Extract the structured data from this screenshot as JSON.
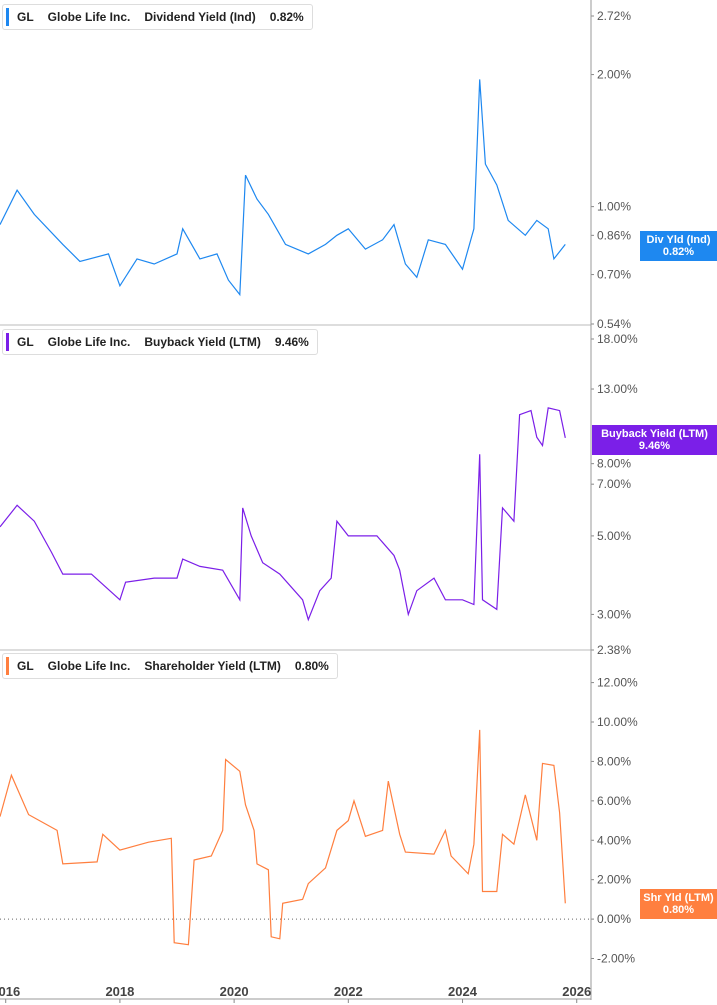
{
  "chart_data": [
    {
      "type": "line",
      "ticker": "GL",
      "company": "Globe Life Inc.",
      "metric": "Dividend Yield (Ind)",
      "value_label": "0.82%",
      "tag_name": "Div Yld (Ind)",
      "color": "#1e88f0",
      "scale": "log",
      "ylim": [
        0.54,
        2.72
      ],
      "yticks": [
        "2.72%",
        "2.00%",
        "1.00%",
        "0.86%",
        "0.70%",
        "0.54%"
      ],
      "x": [
        2015.9,
        2016.2,
        2016.5,
        2017,
        2017.3,
        2017.8,
        2018,
        2018.3,
        2018.6,
        2019,
        2019.1,
        2019.4,
        2019.7,
        2019.9,
        2020.1,
        2020.2,
        2020.4,
        2020.6,
        2020.9,
        2021.3,
        2021.6,
        2021.8,
        2022,
        2022.3,
        2022.6,
        2022.8,
        2023,
        2023.2,
        2023.4,
        2023.7,
        2024,
        2024.2,
        2024.3,
        2024.4,
        2024.6,
        2024.8,
        2025.1,
        2025.3,
        2025.5,
        2025.6,
        2025.8
      ],
      "y": [
        0.91,
        1.09,
        0.96,
        0.82,
        0.75,
        0.78,
        0.66,
        0.76,
        0.74,
        0.78,
        0.89,
        0.76,
        0.78,
        0.68,
        0.63,
        1.18,
        1.04,
        0.96,
        0.82,
        0.78,
        0.82,
        0.86,
        0.89,
        0.8,
        0.84,
        0.91,
        0.74,
        0.69,
        0.84,
        0.82,
        0.72,
        0.89,
        1.95,
        1.25,
        1.12,
        0.93,
        0.86,
        0.93,
        0.89,
        0.76,
        0.82
      ]
    },
    {
      "type": "line",
      "ticker": "GL",
      "company": "Globe Life Inc.",
      "metric": "Buyback Yield (LTM)",
      "value_label": "9.46%",
      "tag_name": "Buyback Yield (LTM)",
      "color": "#7b1fe8",
      "scale": "log",
      "ylim": [
        2.38,
        18
      ],
      "yticks": [
        "18.00%",
        "13.00%",
        "8.00%",
        "7.00%",
        "5.00%",
        "3.00%",
        "2.38%"
      ],
      "x": [
        2015.9,
        2016.2,
        2016.5,
        2016.8,
        2017,
        2017.5,
        2018,
        2018.1,
        2018.6,
        2019,
        2019.1,
        2019.4,
        2019.8,
        2020.1,
        2020.15,
        2020.3,
        2020.5,
        2020.8,
        2021.2,
        2021.3,
        2021.5,
        2021.7,
        2021.8,
        2022,
        2022.3,
        2022.5,
        2022.8,
        2022.9,
        2023.05,
        2023.2,
        2023.5,
        2023.7,
        2024,
        2024.2,
        2024.3,
        2024.35,
        2024.6,
        2024.7,
        2024.9,
        2025,
        2025.2,
        2025.3,
        2025.4,
        2025.5,
        2025.7,
        2025.8
      ],
      "y": [
        5.3,
        6.1,
        5.5,
        4.5,
        3.9,
        3.9,
        3.3,
        3.7,
        3.8,
        3.8,
        4.3,
        4.1,
        4.0,
        3.3,
        6.0,
        5.0,
        4.2,
        3.9,
        3.3,
        2.9,
        3.5,
        3.8,
        5.5,
        5.0,
        5.0,
        5.0,
        4.4,
        4.0,
        3.0,
        3.5,
        3.8,
        3.3,
        3.3,
        3.2,
        8.5,
        3.3,
        3.1,
        6.0,
        5.5,
        11.0,
        11.3,
        9.5,
        9.0,
        11.5,
        11.3,
        9.46
      ]
    },
    {
      "type": "line",
      "ticker": "GL",
      "company": "Globe Life Inc.",
      "metric": "Shareholder Yield (LTM)",
      "value_label": "0.80%",
      "tag_name": "Shr Yld (LTM)",
      "color": "#ff7f3f",
      "scale": "linear",
      "ylim": [
        -2.38,
        13.4
      ],
      "yticks": [
        "12.00%",
        "10.00%",
        "8.00%",
        "6.00%",
        "4.00%",
        "2.00%",
        "0.00%",
        "-2.00%"
      ],
      "x": [
        2015.9,
        2016.1,
        2016.4,
        2016.9,
        2017,
        2017.6,
        2017.7,
        2018,
        2018.5,
        2018.9,
        2018.95,
        2019.2,
        2019.3,
        2019.6,
        2019.8,
        2019.85,
        2020.1,
        2020.2,
        2020.35,
        2020.4,
        2020.6,
        2020.65,
        2020.8,
        2020.85,
        2021.2,
        2021.3,
        2021.6,
        2021.8,
        2022,
        2022.1,
        2022.3,
        2022.6,
        2022.7,
        2022.9,
        2023,
        2023.5,
        2023.7,
        2023.8,
        2024.1,
        2024.2,
        2024.3,
        2024.35,
        2024.6,
        2024.7,
        2024.9,
        2025.1,
        2025.3,
        2025.4,
        2025.6,
        2025.7,
        2025.8
      ],
      "y": [
        5.2,
        7.3,
        5.3,
        4.5,
        2.8,
        2.9,
        4.3,
        3.5,
        3.9,
        4.1,
        -1.2,
        -1.3,
        3.0,
        3.2,
        4.5,
        8.1,
        7.5,
        5.8,
        4.5,
        2.8,
        2.5,
        -0.9,
        -1.0,
        0.8,
        1.0,
        1.8,
        2.6,
        4.5,
        5.0,
        6.0,
        4.2,
        4.5,
        7.0,
        4.3,
        3.4,
        3.3,
        4.5,
        3.2,
        2.3,
        3.8,
        9.6,
        1.4,
        1.4,
        4.3,
        3.8,
        6.3,
        4.0,
        7.9,
        7.8,
        5.4,
        0.8
      ]
    }
  ],
  "xaxis": {
    "ticks": [
      "2016",
      "2018",
      "2020",
      "2022",
      "2024",
      "2026"
    ],
    "values": [
      2016,
      2018,
      2020,
      2022,
      2024,
      2026
    ]
  }
}
